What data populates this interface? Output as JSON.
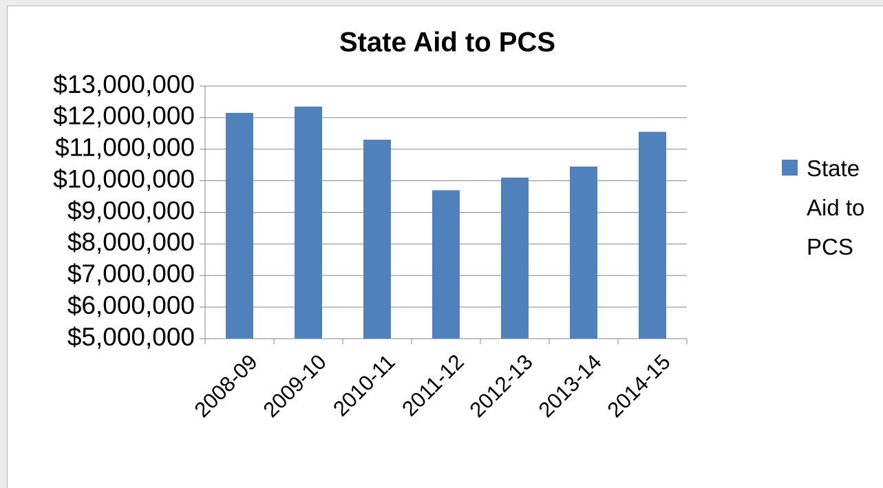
{
  "chart_data": {
    "type": "bar",
    "title": "State Aid to PCS",
    "categories": [
      "2008-09",
      "2009-10",
      "2010-11",
      "2011-12",
      "2012-13",
      "2013-14",
      "2014-15"
    ],
    "series": [
      {
        "name": "State Aid to PCS",
        "color": "#4f81bd",
        "values": [
          12150000,
          12350000,
          11300000,
          9700000,
          10100000,
          10450000,
          11550000
        ]
      }
    ],
    "ylim": [
      5000000,
      13000000
    ],
    "yticks": [
      {
        "value": 5000000,
        "label": "$5,000,000"
      },
      {
        "value": 6000000,
        "label": "$6,000,000"
      },
      {
        "value": 7000000,
        "label": "$7,000,000"
      },
      {
        "value": 8000000,
        "label": "$8,000,000"
      },
      {
        "value": 9000000,
        "label": "$9,000,000"
      },
      {
        "value": 10000000,
        "label": "$10,000,000"
      },
      {
        "value": 11000000,
        "label": "$11,000,000"
      },
      {
        "value": 12000000,
        "label": "$12,000,000"
      },
      {
        "value": 13000000,
        "label": "$13,000,000"
      }
    ],
    "grid": true,
    "legend": "right"
  }
}
